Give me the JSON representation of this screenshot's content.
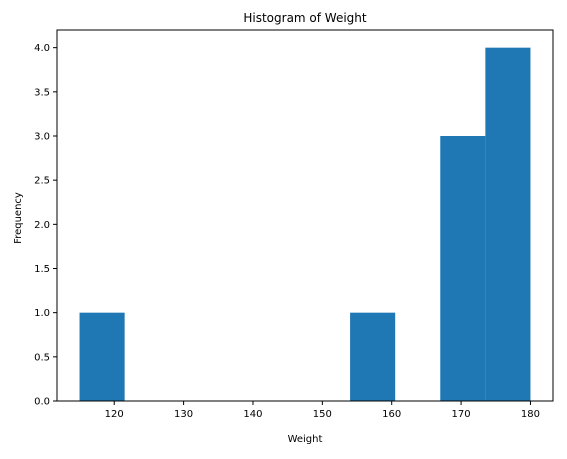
{
  "chart_data": {
    "type": "bar",
    "title": "Histogram of Weight",
    "xlabel": "Weight",
    "ylabel": "Frequency",
    "bins": [
      {
        "start": 115.0,
        "end": 121.5,
        "count": 1
      },
      {
        "start": 121.5,
        "end": 128.0,
        "count": 0
      },
      {
        "start": 128.0,
        "end": 134.5,
        "count": 0
      },
      {
        "start": 134.5,
        "end": 141.0,
        "count": 0
      },
      {
        "start": 141.0,
        "end": 147.5,
        "count": 0
      },
      {
        "start": 147.5,
        "end": 154.0,
        "count": 0
      },
      {
        "start": 154.0,
        "end": 160.5,
        "count": 1
      },
      {
        "start": 160.5,
        "end": 167.0,
        "count": 0
      },
      {
        "start": 167.0,
        "end": 173.5,
        "count": 3
      },
      {
        "start": 173.5,
        "end": 180.0,
        "count": 4
      }
    ],
    "xlim": [
      111.75,
      183.25
    ],
    "ylim": [
      0,
      4.2
    ],
    "xticks": [
      120,
      130,
      140,
      150,
      160,
      170,
      180
    ],
    "xtick_labels": [
      "120",
      "130",
      "140",
      "150",
      "160",
      "170",
      "180"
    ],
    "yticks": [
      0,
      0.5,
      1,
      1.5,
      2,
      2.5,
      3,
      3.5,
      4
    ],
    "ytick_labels": [
      "0.0",
      "0.5",
      "1.0",
      "1.5",
      "2.0",
      "2.5",
      "3.0",
      "3.5",
      "4.0"
    ],
    "grid": false,
    "bar_color": "#1f77b4"
  }
}
